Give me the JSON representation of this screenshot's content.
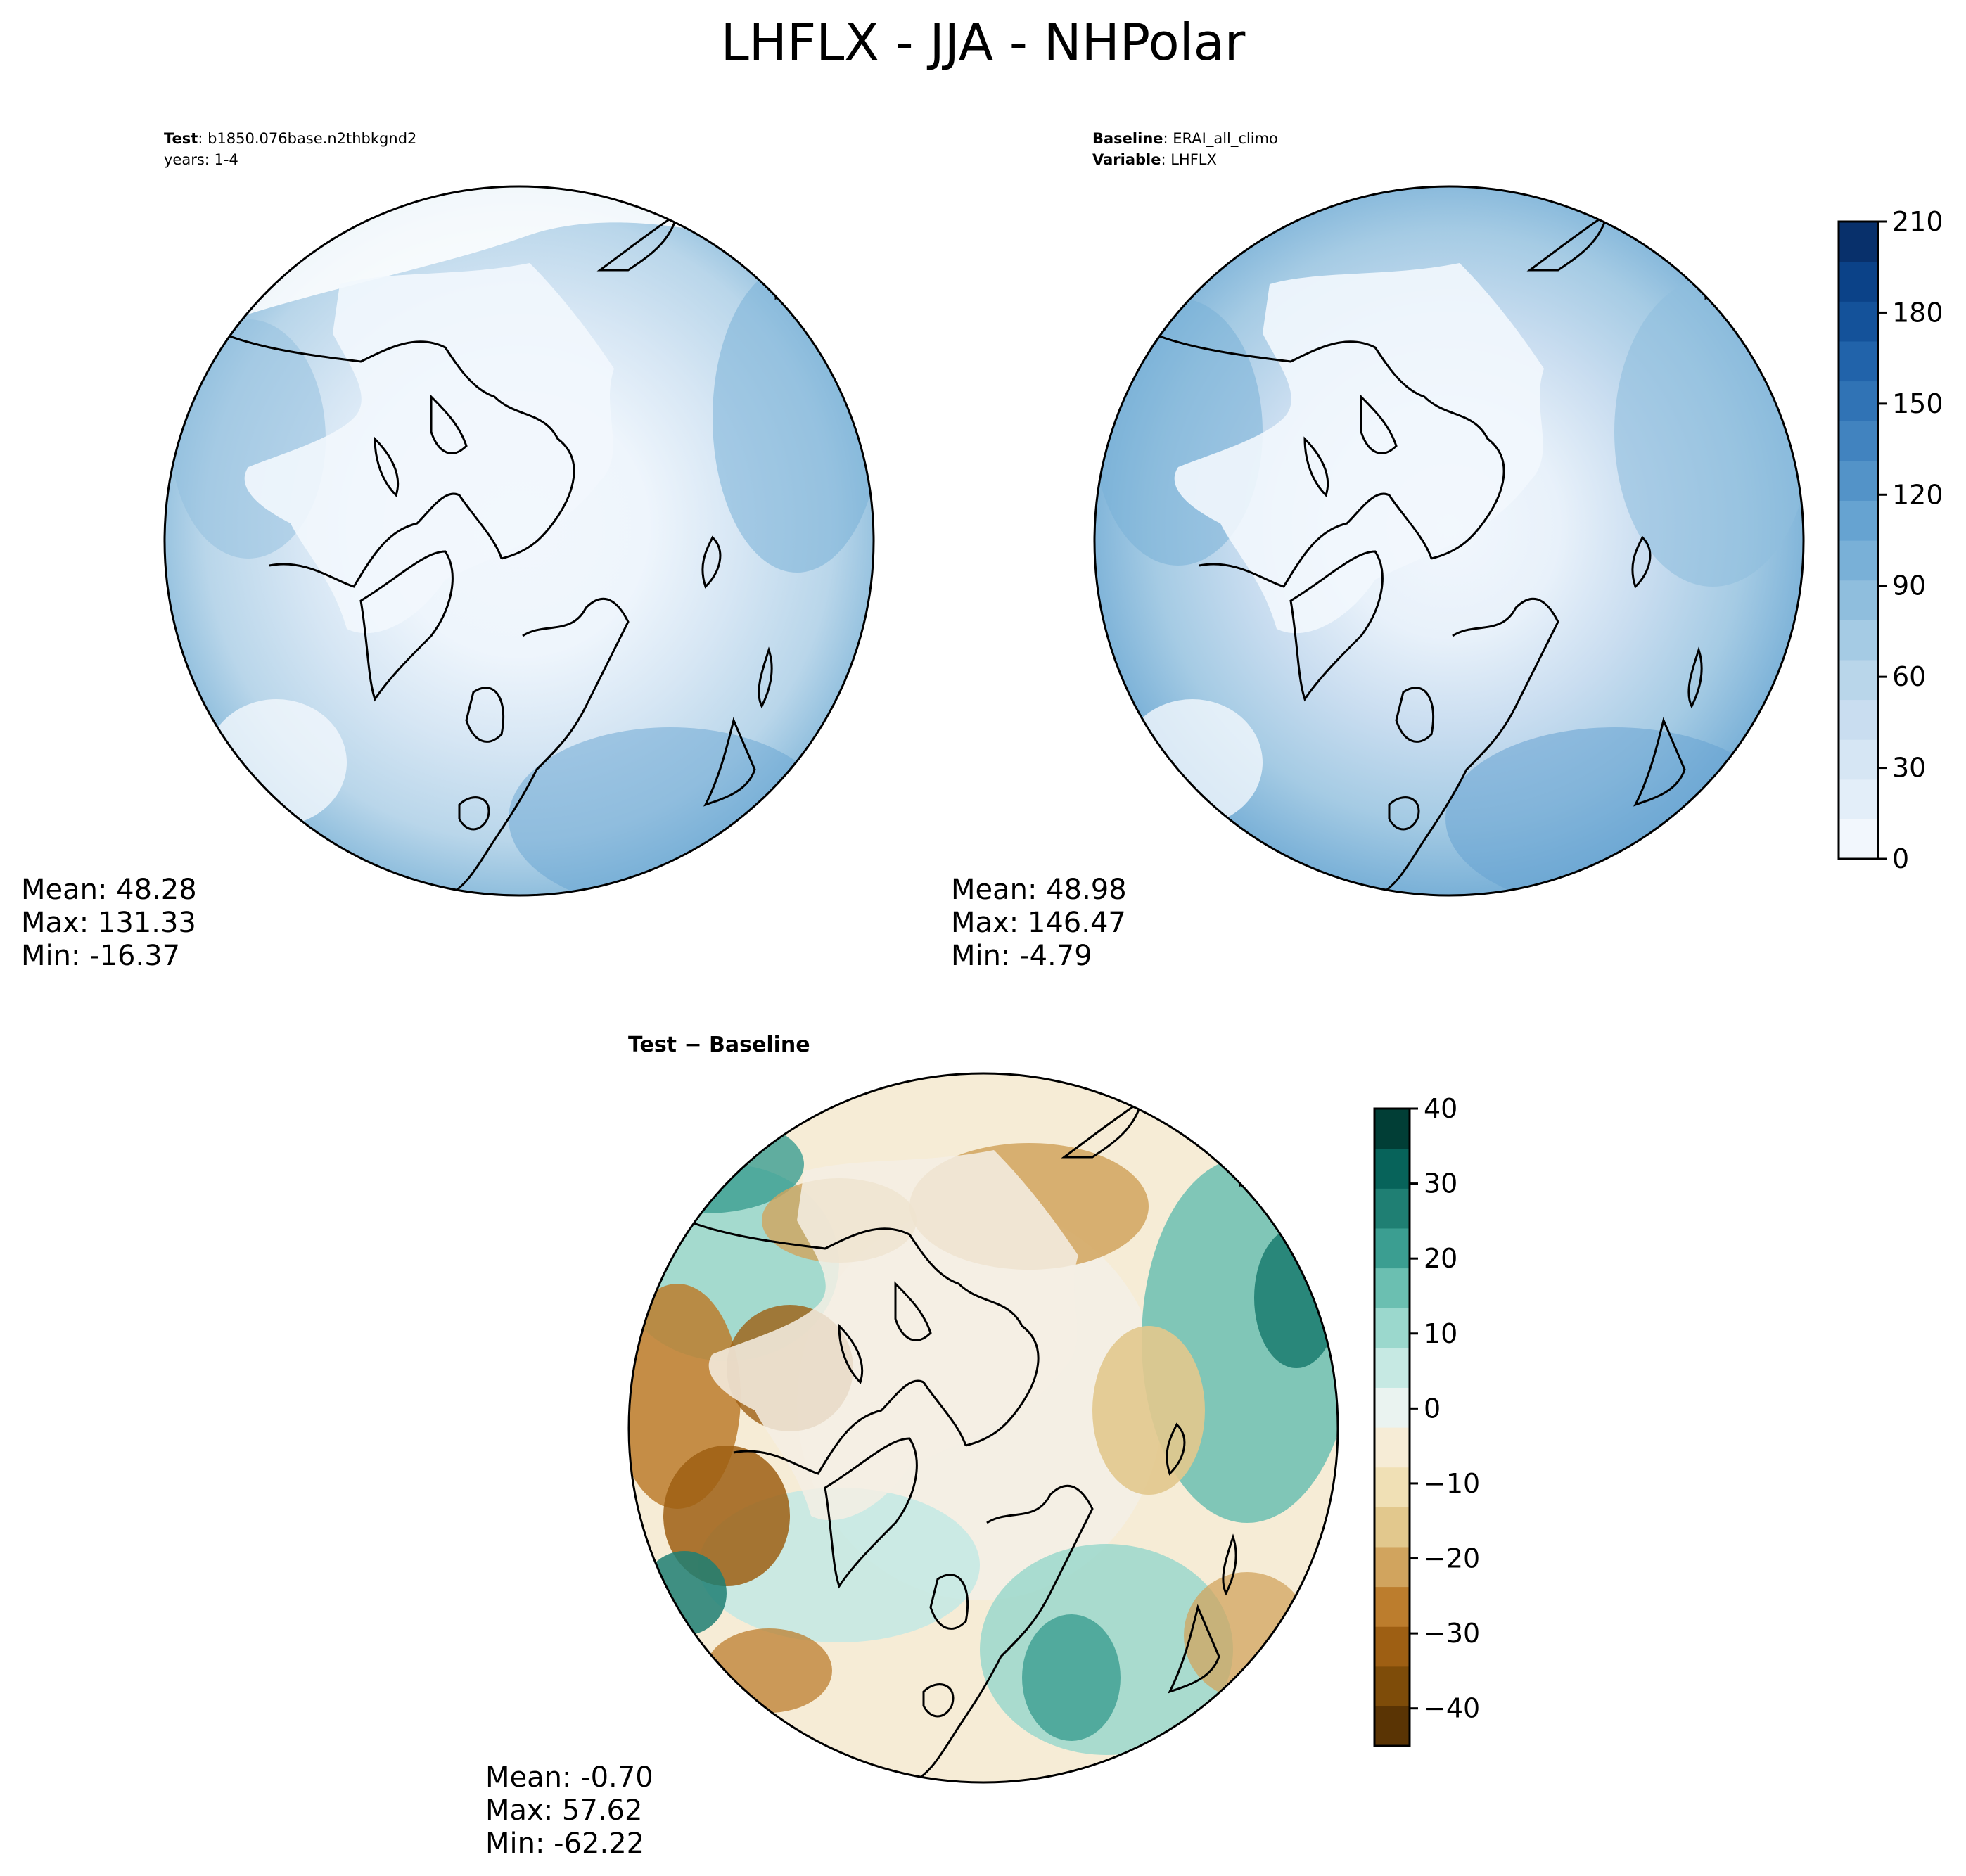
{
  "title": "LHFLX - JJA - NHPolar",
  "test_panel": {
    "label_bold": "Test",
    "label_text": ": b1850.076base.n2thbkgnd2",
    "line2": "years: 1-4",
    "mean": "Mean: 48.28",
    "max": "Max: 131.33",
    "min": "Min: -16.37"
  },
  "baseline_panel": {
    "label_bold": "Baseline",
    "label_text": ": ERAI_all_climo",
    "line2_bold": "Variable",
    "line2_text": ": LHFLX",
    "mean": "Mean: 48.98",
    "max": "Max: 146.47",
    "min": "Min: -4.79"
  },
  "diff_panel": {
    "title": "Test − Baseline",
    "mean": "Mean: -0.70",
    "max": "Max: 57.62",
    "min": "Min: -62.22"
  },
  "colorbar_main": {
    "ticks": [
      "0",
      "30",
      "60",
      "90",
      "120",
      "150",
      "180",
      "210"
    ],
    "colors": [
      "#f2f7fd",
      "#e3eef9",
      "#d6e6f4",
      "#c9ddf0",
      "#b9d6ea",
      "#a5cbe4",
      "#8fbedd",
      "#79b0d7",
      "#66a3d1",
      "#5393c8",
      "#4183bf",
      "#3073b5",
      "#2163aa",
      "#14529a",
      "#0b4288",
      "#08306b"
    ]
  },
  "colorbar_diff": {
    "ticks": [
      "40",
      "30",
      "20",
      "10",
      "0",
      "−10",
      "−20",
      "−30",
      "−40"
    ],
    "colors": [
      "#5a3404",
      "#7e4c09",
      "#9e5f13",
      "#bc7d2d",
      "#d1a45e",
      "#e2c88d",
      "#f0e0b5",
      "#f6ecd6",
      "#eaf3f0",
      "#c6e9e3",
      "#9bd8cd",
      "#6bbfb1",
      "#3b9e91",
      "#1f7f73",
      "#07635a",
      "#013e36"
    ]
  }
}
